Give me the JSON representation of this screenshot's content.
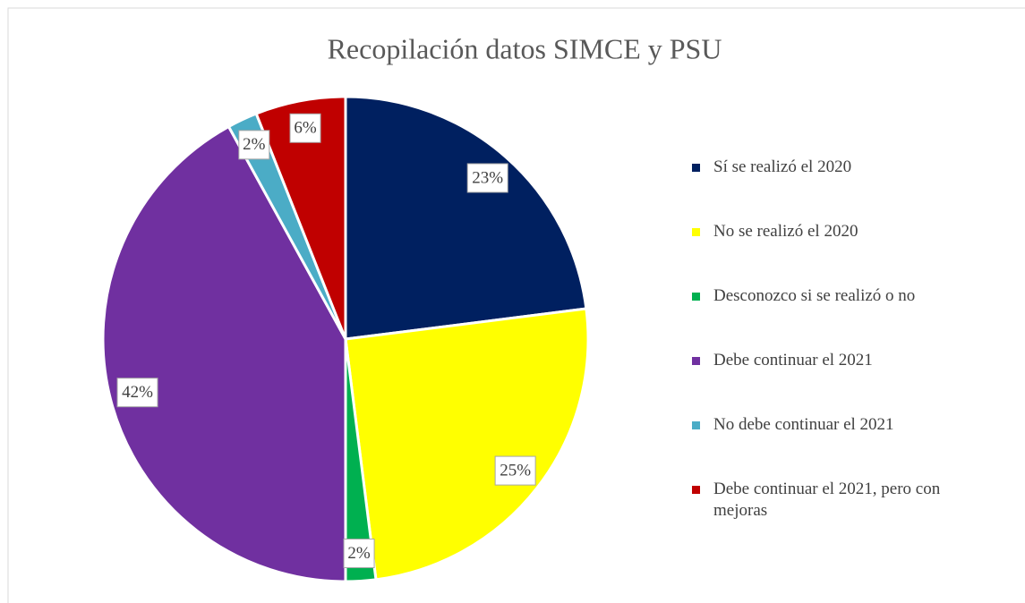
{
  "chart_data": {
    "type": "pie",
    "title": "Recopilación datos SIMCE y PSU",
    "categories": [
      "Sí se realizó el 2020",
      "No se realizó el 2020",
      "Desconozco si se realizó o no",
      "Debe continuar el 2021",
      "No debe continuar el 2021",
      "Debe continuar el 2021, pero con mejoras"
    ],
    "values": [
      23,
      25,
      2,
      42,
      2,
      6
    ],
    "value_labels": [
      "23%",
      "25%",
      "2%",
      "42%",
      "2%",
      "6%"
    ],
    "colors": [
      "#002060",
      "#ffff00",
      "#00b050",
      "#7030a0",
      "#4bacc6",
      "#c00000"
    ],
    "legend": "right"
  }
}
